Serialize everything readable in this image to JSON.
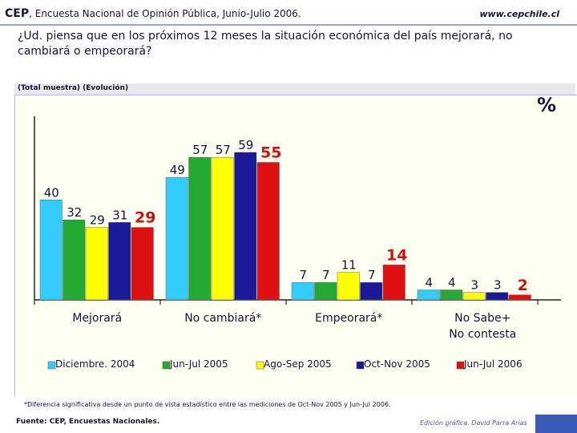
{
  "header": {
    "org": "CEP",
    "subtitle": ", Encuesta Nacional de Opinión Pública, Junio-Julio 2006.",
    "website": "www.cepchile.cl"
  },
  "question": "¿Ud. piensa que en los próximos 12 meses la situación económica del país mejorará, no cambiará o empeorará?",
  "sample_label": "(Total muestra) (Evolución)",
  "unit_symbol": "%",
  "chart_data": {
    "type": "bar",
    "categories": [
      "Mejorará",
      "No cambiará*",
      "Empeorará*",
      "No Sabe+\nNo contesta"
    ],
    "series": [
      {
        "name": "Diciembre. 2004",
        "color": "#33ccff",
        "values": [
          40,
          49,
          7,
          4
        ]
      },
      {
        "name": "Jun-Jul 2005",
        "color": "#22aa33",
        "values": [
          32,
          57,
          7,
          4
        ]
      },
      {
        "name": "Ago-Sep 2005",
        "color": "#ffff00",
        "values": [
          29,
          57,
          11,
          3
        ]
      },
      {
        "name": "Oct-Nov 2005",
        "color": "#1a1a99",
        "values": [
          31,
          59,
          7,
          3
        ]
      },
      {
        "name": "Jun-Jul 2006",
        "color": "#dd1111",
        "values": [
          29,
          55,
          14,
          2
        ]
      }
    ],
    "ylim": [
      0,
      60
    ],
    "highlight_series": "Jun-Jul 2006",
    "highlight_color": "#cc1111",
    "legend_position": "bottom"
  },
  "footnote": "*Diferencia significativa desde un punto de vista estadístico entre las mediciones de Oct-Nov 2005 y Jun-Jul 2006.",
  "source_label": "Fuente: CEP, Encuestas Nacionales.",
  "credit": "Edición gráfica. David Parra Arias"
}
